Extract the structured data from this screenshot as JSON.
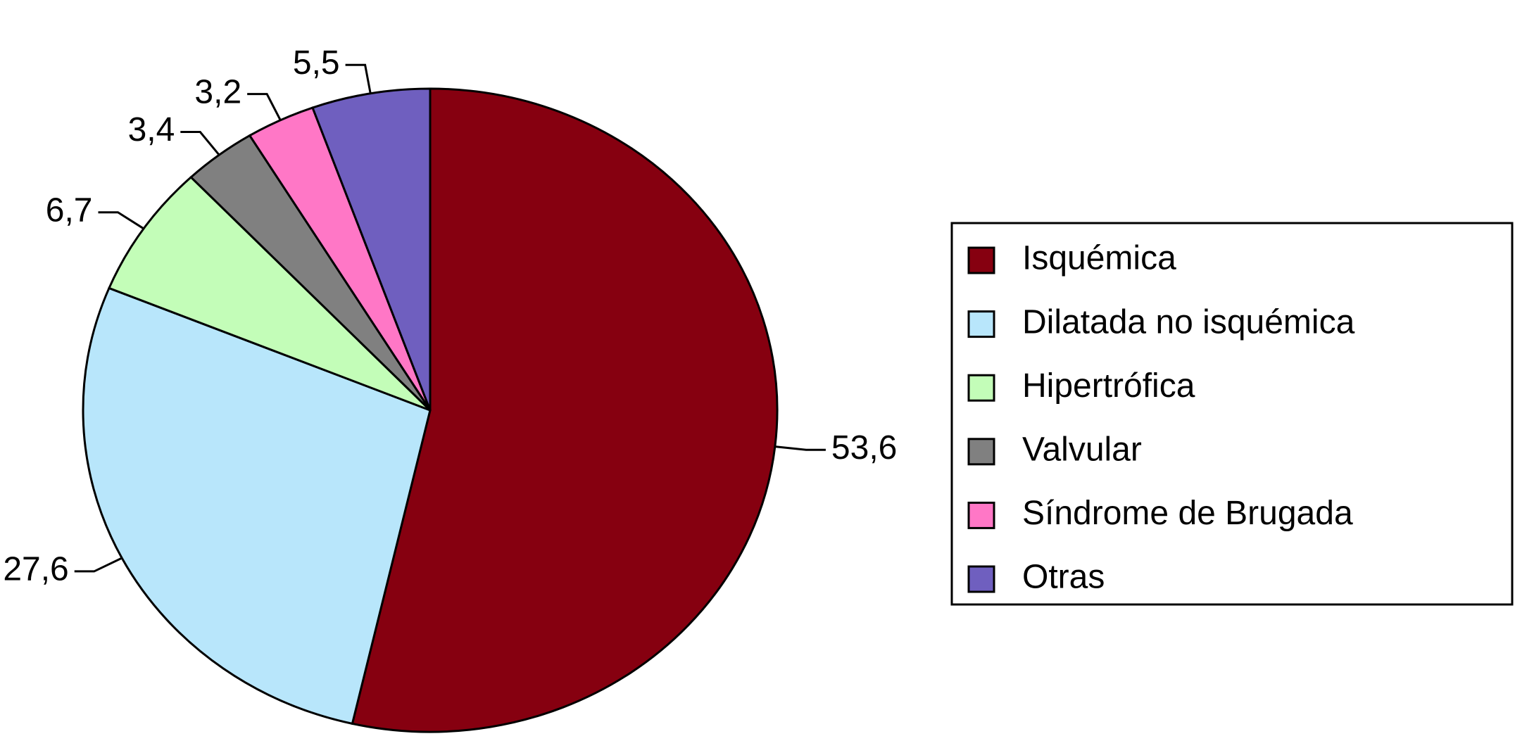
{
  "chart_data": {
    "type": "pie",
    "categories": [
      "Isquémica",
      "Dilatada no isquémica",
      "Hipertrófica",
      "Valvular",
      "Síndrome de Brugada",
      "Otras"
    ],
    "values": [
      53.6,
      27.6,
      6.7,
      3.4,
      3.2,
      5.5
    ],
    "value_labels": [
      "53,6",
      "27,6",
      "6,7",
      "3,4",
      "3,2",
      "5,5"
    ],
    "colors": [
      "#860010",
      "#b8e6fb",
      "#c3fdb8",
      "#808080",
      "#ff77c6",
      "#6f5fbf"
    ],
    "legend": "right"
  }
}
